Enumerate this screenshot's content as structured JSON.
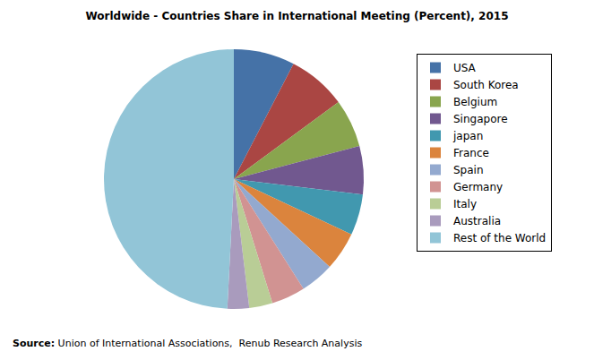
{
  "chart_data": {
    "type": "pie",
    "title": "Worldwide - Countries Share in International Meeting (Percent), 2015",
    "categories": [
      "USA",
      "South Korea",
      "Belgium",
      "Singapore",
      "japan",
      "France",
      "Spain",
      "Germany",
      "Italy",
      "Australia",
      "Rest of the World"
    ],
    "values": [
      7.6,
      7.3,
      6.0,
      6.0,
      5.1,
      4.8,
      4.2,
      4.2,
      2.9,
      2.7,
      49.2
    ],
    "colors": [
      "#4572A7",
      "#AA4643",
      "#89A54E",
      "#71588F",
      "#4198AF",
      "#DB843D",
      "#93A9CF",
      "#D19392",
      "#B9CD96",
      "#A99BBD",
      "#92C5D7"
    ],
    "legend": "right",
    "data_labels": false,
    "annotations": [
      "Source: Union of International Associations,  Renub Research Analysis"
    ]
  }
}
